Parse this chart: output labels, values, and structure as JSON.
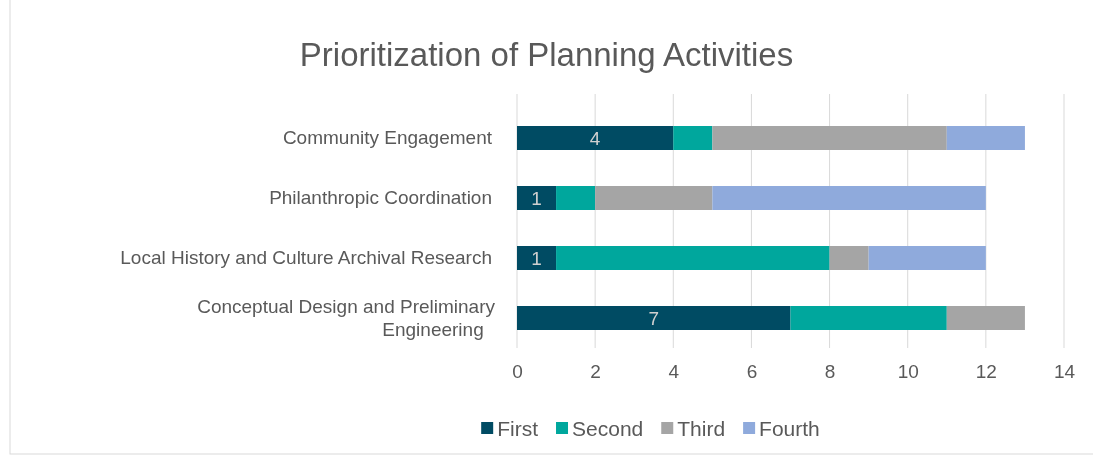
{
  "chart_data": {
    "type": "bar",
    "orientation": "horizontal",
    "stacked": true,
    "title": "Prioritization of Planning Activities",
    "categories": [
      "Community Engagement",
      "Philanthropic Coordination",
      "Local History and Culture Archival Research",
      "Conceptual Design and Preliminary Engineering"
    ],
    "series": [
      {
        "name": "First",
        "color": "#004b63",
        "values": [
          4,
          1,
          1,
          7
        ],
        "value_labels": [
          "4",
          "1",
          "1",
          "7"
        ]
      },
      {
        "name": "Second",
        "color": "#00a79d",
        "values": [
          1,
          1,
          7,
          4
        ]
      },
      {
        "name": "Third",
        "color": "#a5a5a5",
        "values": [
          6,
          3,
          1,
          2
        ]
      },
      {
        "name": "Fourth",
        "color": "#8faadc",
        "values": [
          2,
          7,
          3,
          null
        ]
      }
    ],
    "xlim": [
      0,
      14
    ],
    "xticks": [
      0,
      2,
      4,
      6,
      8,
      10,
      12,
      14
    ],
    "grid": "x",
    "legend": "bottom"
  }
}
